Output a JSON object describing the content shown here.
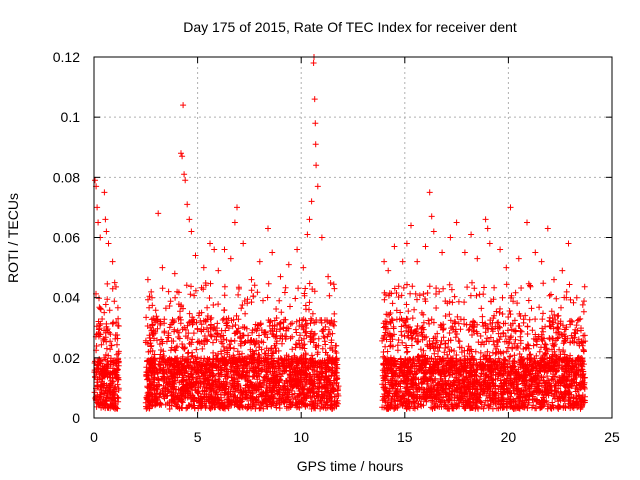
{
  "chart_data": {
    "type": "scatter",
    "title": "Day 175 of 2015, Rate Of TEC Index for receiver dent",
    "xlabel": "GPS time / hours",
    "ylabel": "ROTI / TECUs",
    "xlim": [
      0,
      25
    ],
    "ylim": [
      0,
      0.12
    ],
    "x_ticks": [
      0,
      5,
      10,
      15,
      20,
      25
    ],
    "y_ticks": [
      0,
      0.02,
      0.04,
      0.06,
      0.08,
      0.1,
      0.12
    ],
    "x_tick_labels": [
      "0",
      "5",
      "10",
      "15",
      "20",
      "25"
    ],
    "y_tick_labels": [
      "0",
      "0.02",
      "0.04",
      "0.06",
      "0.08",
      "0.1",
      "0.12"
    ],
    "grid": true,
    "marker": "+",
    "series": [
      {
        "color": "#ff0000",
        "segments": [
          [
            0.0,
            1.2
          ],
          [
            2.5,
            11.8
          ],
          [
            13.9,
            23.7
          ]
        ],
        "points": [
          [
            0.05,
            0.079
          ],
          [
            0.1,
            0.077
          ],
          [
            0.15,
            0.07
          ],
          [
            0.2,
            0.065
          ],
          [
            0.3,
            0.06
          ],
          [
            0.5,
            0.075
          ],
          [
            0.55,
            0.066
          ],
          [
            0.6,
            0.062
          ],
          [
            0.7,
            0.058
          ],
          [
            0.9,
            0.052
          ],
          [
            1.0,
            0.045
          ],
          [
            2.6,
            0.046
          ],
          [
            2.8,
            0.04
          ],
          [
            3.1,
            0.068
          ],
          [
            3.3,
            0.05
          ],
          [
            3.6,
            0.042
          ],
          [
            3.9,
            0.048
          ],
          [
            4.2,
            0.088
          ],
          [
            4.25,
            0.087
          ],
          [
            4.3,
            0.104
          ],
          [
            4.35,
            0.081
          ],
          [
            4.4,
            0.079
          ],
          [
            4.5,
            0.071
          ],
          [
            4.6,
            0.066
          ],
          [
            4.7,
            0.062
          ],
          [
            4.9,
            0.054
          ],
          [
            5.3,
            0.05
          ],
          [
            5.6,
            0.058
          ],
          [
            5.8,
            0.056
          ],
          [
            6.0,
            0.049
          ],
          [
            6.3,
            0.056
          ],
          [
            6.6,
            0.053
          ],
          [
            6.8,
            0.065
          ],
          [
            6.9,
            0.07
          ],
          [
            7.2,
            0.058
          ],
          [
            7.6,
            0.046
          ],
          [
            8.0,
            0.052
          ],
          [
            8.4,
            0.063
          ],
          [
            8.6,
            0.055
          ],
          [
            9.0,
            0.047
          ],
          [
            9.4,
            0.051
          ],
          [
            9.8,
            0.056
          ],
          [
            10.1,
            0.05
          ],
          [
            10.3,
            0.061
          ],
          [
            10.4,
            0.066
          ],
          [
            10.5,
            0.072
          ],
          [
            10.6,
            0.118
          ],
          [
            10.62,
            0.12
          ],
          [
            10.65,
            0.106
          ],
          [
            10.68,
            0.098
          ],
          [
            10.7,
            0.091
          ],
          [
            10.72,
            0.084
          ],
          [
            10.8,
            0.077
          ],
          [
            11.0,
            0.06
          ],
          [
            11.3,
            0.047
          ],
          [
            11.6,
            0.043
          ],
          [
            14.0,
            0.052
          ],
          [
            14.2,
            0.049
          ],
          [
            14.5,
            0.057
          ],
          [
            14.9,
            0.052
          ],
          [
            15.1,
            0.058
          ],
          [
            15.3,
            0.064
          ],
          [
            15.6,
            0.052
          ],
          [
            16.0,
            0.057
          ],
          [
            16.2,
            0.075
          ],
          [
            16.3,
            0.067
          ],
          [
            16.4,
            0.062
          ],
          [
            16.8,
            0.055
          ],
          [
            17.2,
            0.06
          ],
          [
            17.5,
            0.065
          ],
          [
            17.9,
            0.055
          ],
          [
            18.2,
            0.061
          ],
          [
            18.5,
            0.053
          ],
          [
            18.9,
            0.066
          ],
          [
            19.0,
            0.063
          ],
          [
            19.1,
            0.058
          ],
          [
            19.6,
            0.056
          ],
          [
            19.9,
            0.05
          ],
          [
            20.1,
            0.07
          ],
          [
            20.5,
            0.053
          ],
          [
            20.9,
            0.065
          ],
          [
            21.3,
            0.055
          ],
          [
            21.6,
            0.052
          ],
          [
            21.9,
            0.063
          ],
          [
            22.2,
            0.046
          ],
          [
            22.6,
            0.049
          ],
          [
            22.9,
            0.058
          ],
          [
            23.3,
            0.04
          ],
          [
            23.6,
            0.025
          ]
        ]
      }
    ]
  }
}
